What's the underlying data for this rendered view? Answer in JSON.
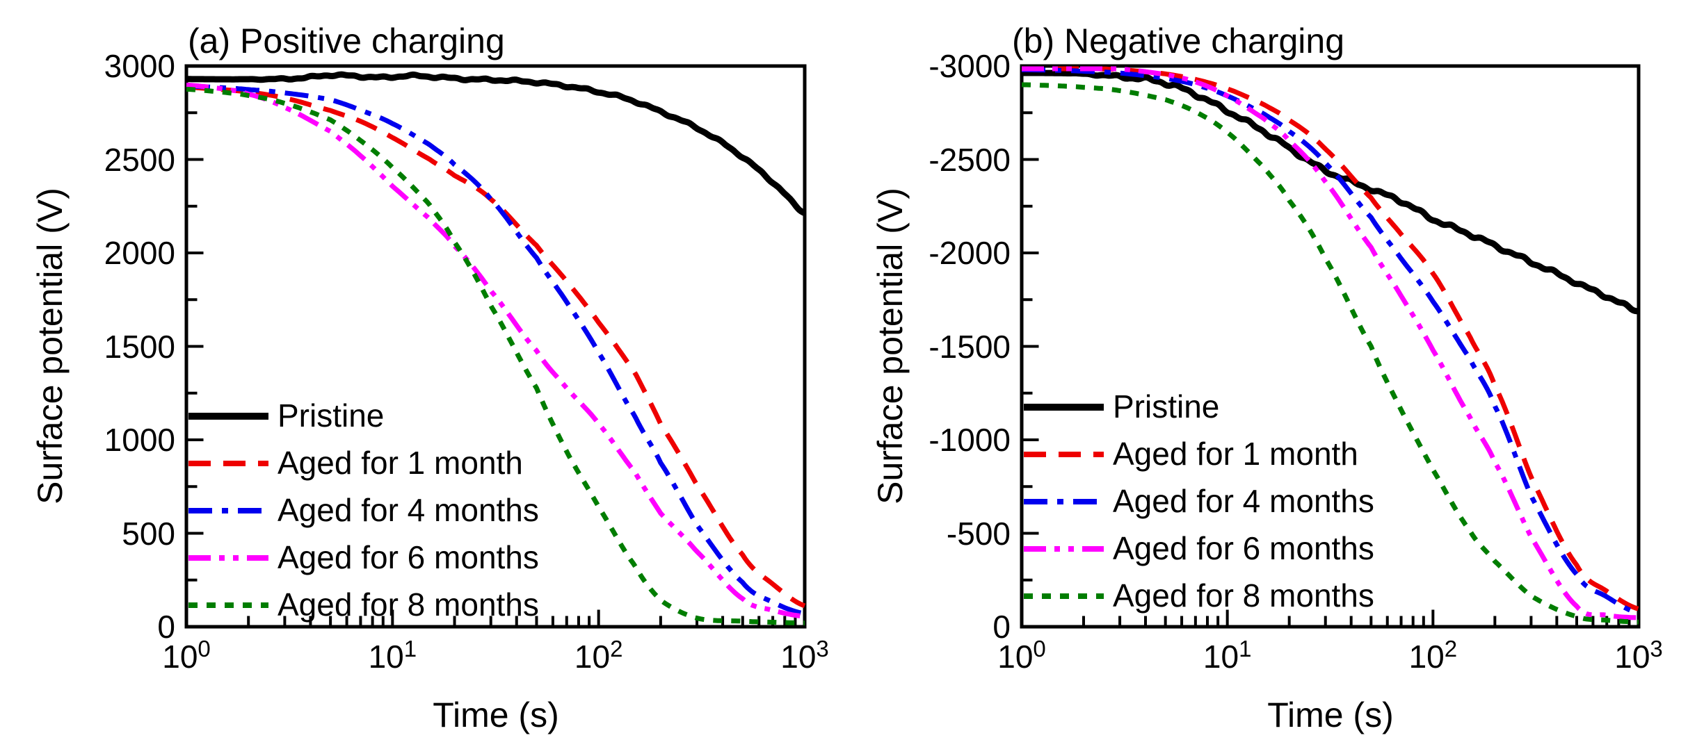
{
  "figure": {
    "background": "#ffffff",
    "axis_color": "#000000",
    "text_color": "#000000"
  },
  "chart_data": [
    {
      "type": "line",
      "panel": "a",
      "title": "(a) Positive charging",
      "xlabel": "Time (s)",
      "ylabel": "Surface potential (V)",
      "xscale": "log",
      "xlim": [
        1,
        1000
      ],
      "x_decades": [
        0,
        1,
        2,
        3
      ],
      "y_top": 3000,
      "y_bottom": 0,
      "yticks": [
        0,
        500,
        1000,
        1500,
        2000,
        2500,
        3000
      ],
      "yminor_step": 250,
      "grid": false,
      "legend_position": "lower left",
      "series": [
        {
          "name": "Pristine",
          "color": "#000000",
          "style": "solid",
          "width": 9,
          "noise": 8,
          "t": [
            1,
            1.5,
            2,
            3,
            4,
            5,
            7,
            9,
            12,
            16,
            22,
            30,
            40,
            55,
            75,
            100,
            140,
            200,
            280,
            400,
            550,
            750,
            1000
          ],
          "v": [
            2930,
            2929,
            2929,
            2932,
            2939,
            2950,
            2945,
            2940,
            2947,
            2940,
            2932,
            2927,
            2919,
            2907,
            2889,
            2861,
            2820,
            2757,
            2686,
            2587,
            2478,
            2350,
            2214
          ]
        },
        {
          "name": "Aged for 1 month",
          "color": "#ee0000",
          "style": "dash",
          "width": 7,
          "noise": 0,
          "t": [
            1,
            1.5,
            2,
            3,
            5,
            7,
            10,
            15,
            20,
            30,
            50,
            70,
            100,
            150,
            200,
            300,
            500,
            700,
            1000
          ],
          "v": [
            2886,
            2874,
            2860,
            2828,
            2762,
            2704,
            2617,
            2504,
            2414,
            2287,
            2040,
            1848,
            1628,
            1360,
            1085,
            758,
            385,
            228,
            112
          ]
        },
        {
          "name": "Aged for 4 months",
          "color": "#0000ee",
          "style": "dashdot",
          "width": 7,
          "noise": 0,
          "t": [
            1,
            1.5,
            2,
            3,
            5,
            7,
            10,
            15,
            20,
            30,
            50,
            70,
            100,
            150,
            200,
            300,
            500,
            700,
            1000
          ],
          "v": [
            2892,
            2884,
            2874,
            2856,
            2820,
            2764,
            2692,
            2582,
            2472,
            2287,
            1974,
            1737,
            1467,
            1127,
            877,
            544,
            237,
            131,
            70
          ]
        },
        {
          "name": "Aged for 6 months",
          "color": "#ff00ff",
          "style": "dashdotdot",
          "width": 7,
          "noise": 0,
          "t": [
            1,
            1.5,
            2,
            3,
            5,
            7,
            10,
            15,
            20,
            30,
            50,
            70,
            100,
            150,
            200,
            300,
            500,
            700,
            1000
          ],
          "v": [
            2898,
            2878,
            2850,
            2778,
            2650,
            2520,
            2357,
            2187,
            2037,
            1797,
            1477,
            1277,
            1087,
            827,
            607,
            402,
            150,
            88,
            55
          ]
        },
        {
          "name": "Aged for 8 months",
          "color": "#007d00",
          "style": "shortdash",
          "width": 7,
          "noise": 0,
          "t": [
            1,
            1.5,
            2,
            3,
            5,
            7,
            10,
            15,
            20,
            30,
            50,
            70,
            100,
            150,
            200,
            300,
            500,
            700,
            1000
          ],
          "v": [
            2876,
            2860,
            2842,
            2800,
            2712,
            2601,
            2457,
            2264,
            2057,
            1717,
            1277,
            937,
            642,
            327,
            142,
            46,
            30,
            24,
            20
          ]
        }
      ]
    },
    {
      "type": "line",
      "panel": "b",
      "title": "(b) Negative charging",
      "xlabel": "Time (s)",
      "ylabel": "Surface potential (V)",
      "xscale": "log",
      "xlim": [
        1,
        1000
      ],
      "x_decades": [
        0,
        1,
        2,
        3
      ],
      "y_top": -3000,
      "y_bottom": 0,
      "yticks": [
        0,
        -500,
        -1000,
        -1500,
        -2000,
        -2500,
        -3000
      ],
      "yminor_step": 250,
      "grid": false,
      "legend_position": "lower left",
      "series": [
        {
          "name": "Pristine",
          "color": "#000000",
          "style": "solid",
          "width": 9,
          "noise": 14,
          "t": [
            1,
            1.5,
            2,
            3,
            4,
            5,
            7,
            10,
            15,
            20,
            30,
            50,
            70,
            100,
            150,
            200,
            300,
            500,
            700,
            1000
          ],
          "v": [
            -2963,
            -2962,
            -2958,
            -2945,
            -2928,
            -2905,
            -2850,
            -2760,
            -2650,
            -2560,
            -2440,
            -2340,
            -2280,
            -2180,
            -2100,
            -2040,
            -1950,
            -1840,
            -1770,
            -1690
          ]
        },
        {
          "name": "Aged for 1 month",
          "color": "#ee0000",
          "style": "dash",
          "width": 7,
          "noise": 0,
          "t": [
            1,
            1.5,
            2,
            3,
            5,
            7,
            10,
            15,
            20,
            30,
            50,
            70,
            100,
            150,
            200,
            300,
            500,
            700,
            1000
          ],
          "v": [
            -2992,
            -2990,
            -2987,
            -2980,
            -2958,
            -2928,
            -2878,
            -2795,
            -2710,
            -2555,
            -2295,
            -2100,
            -1890,
            -1560,
            -1290,
            -800,
            -330,
            -190,
            -95
          ]
        },
        {
          "name": "Aged for 4 months",
          "color": "#0000ee",
          "style": "dashdot",
          "width": 7,
          "noise": 0,
          "t": [
            1,
            1.5,
            2,
            3,
            5,
            7,
            10,
            15,
            20,
            30,
            50,
            70,
            100,
            150,
            200,
            300,
            500,
            700,
            1000
          ],
          "v": [
            -2980,
            -2977,
            -2972,
            -2962,
            -2935,
            -2900,
            -2840,
            -2745,
            -2650,
            -2480,
            -2190,
            -1970,
            -1740,
            -1440,
            -1180,
            -700,
            -280,
            -160,
            -72
          ]
        },
        {
          "name": "Aged for 6 months",
          "color": "#ff00ff",
          "style": "dashdotdot",
          "width": 7,
          "noise": 0,
          "t": [
            1,
            1.5,
            2,
            3,
            5,
            7,
            10,
            15,
            20,
            30,
            50,
            70,
            100,
            150,
            200,
            300,
            500,
            700,
            1000
          ],
          "v": [
            -2994,
            -2993,
            -2991,
            -2984,
            -2955,
            -2915,
            -2840,
            -2720,
            -2600,
            -2380,
            -2030,
            -1770,
            -1480,
            -1130,
            -880,
            -480,
            -110,
            -62,
            -48
          ]
        },
        {
          "name": "Aged for 8 months",
          "color": "#007d00",
          "style": "shortdash",
          "width": 7,
          "noise": 0,
          "t": [
            1,
            1.5,
            2,
            3,
            5,
            7,
            10,
            15,
            20,
            30,
            50,
            70,
            100,
            150,
            200,
            300,
            500,
            700,
            1000
          ],
          "v": [
            -2900,
            -2894,
            -2886,
            -2868,
            -2820,
            -2755,
            -2645,
            -2460,
            -2280,
            -1970,
            -1500,
            -1160,
            -840,
            -520,
            -350,
            -165,
            -55,
            -35,
            -25
          ]
        }
      ]
    }
  ]
}
